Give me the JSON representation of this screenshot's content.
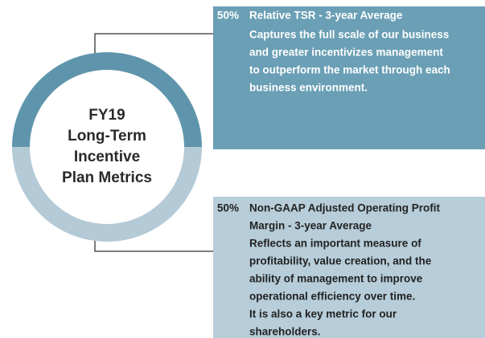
{
  "chart_data": {
    "type": "pie",
    "center_text": [
      "FY19",
      "Long-Term",
      "Incentive",
      "Plan Metrics"
    ],
    "categories": [
      [
        "Relative TSR - 3-year Average"
      ],
      [
        "Non-GAAP Adjusted Operating Profit",
        "Margin - 3-year Average"
      ]
    ],
    "values": [
      50,
      50
    ],
    "value_labels": [
      "50%",
      "50%"
    ],
    "colors": [
      "#5f95ac",
      "#b4cad6"
    ],
    "descriptions": [
      [
        "Captures the full scale of our business",
        "and greater incentivizes management",
        "to outperform the market through each",
        "business environment."
      ],
      [
        "Reflects an important measure of",
        "profitability, value creation, and the",
        "ability of management to improve",
        "operational efficiency over time.",
        "It is also a key metric for our",
        "shareholders."
      ]
    ]
  }
}
